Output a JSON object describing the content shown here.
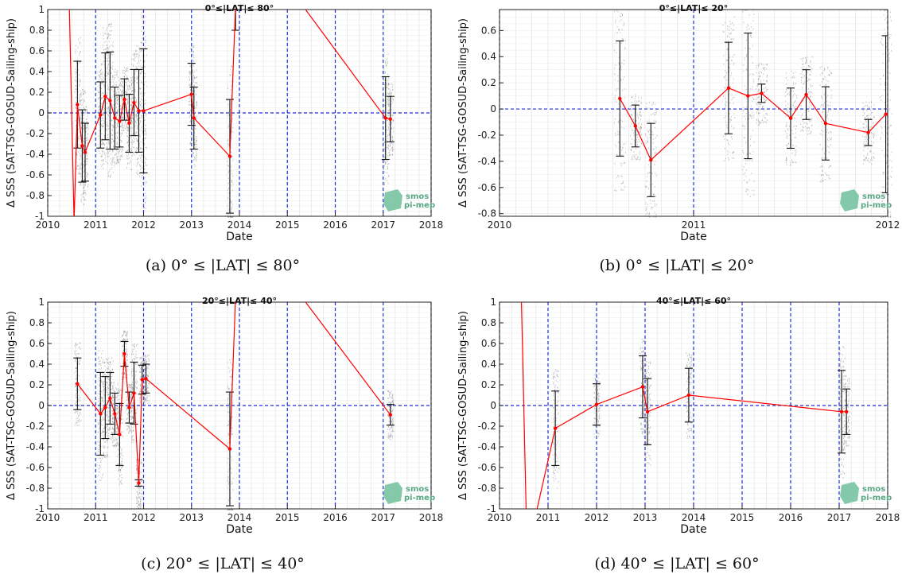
{
  "chart_data": [
    {
      "type": "line",
      "panel": "a",
      "title": "0°≤|LAT|≤ 80°",
      "caption": "(a) 0° ≤ |LAT| ≤ 80°",
      "xlabel": "Date",
      "ylabel": "Δ SSS (SAT-TSG-GOSUD-Sailing-ship)",
      "xlim": [
        2010,
        2018
      ],
      "ylim": [
        -1,
        1
      ],
      "xticks": [
        "2010",
        "2011",
        "2012",
        "2013",
        "2014",
        "2015",
        "2016",
        "2017",
        "2018"
      ],
      "yticks": [
        "-1",
        "-0.8",
        "-0.6",
        "-0.4",
        "-0.2",
        "0",
        "0.2",
        "0.4",
        "0.6",
        "0.8",
        "1"
      ],
      "logo_text": "smos pi-mep",
      "series": [
        {
          "color": "#ff0000",
          "x": [
            2010.45,
            2010.55,
            2010.62,
            2010.72,
            2010.78,
            2011.1,
            2011.2,
            2011.3,
            2011.4,
            2011.5,
            2011.6,
            2011.7,
            2011.8,
            2011.9,
            2012.0,
            2013.0,
            2013.05,
            2013.8,
            2013.92,
            2015.3,
            2017.05,
            2017.15
          ],
          "y": [
            1.05,
            -1.05,
            0.08,
            -0.32,
            -0.38,
            -0.02,
            0.16,
            0.12,
            -0.05,
            -0.08,
            0.13,
            -0.1,
            0.1,
            0.02,
            0.02,
            0.18,
            -0.05,
            -0.42,
            1.05,
            1.05,
            -0.05,
            -0.06
          ],
          "err": [
            0,
            0,
            0.42,
            0.35,
            0.28,
            0.32,
            0.42,
            0.47,
            0.3,
            0.25,
            0.2,
            0.28,
            0.32,
            0.4,
            0.6,
            0.3,
            0.3,
            0.55,
            0.25,
            0,
            0.4,
            0.22
          ]
        }
      ]
    },
    {
      "type": "line",
      "panel": "b",
      "title": "0°≤|LAT|≤ 20°",
      "caption": "(b) 0° ≤ |LAT| ≤ 20°",
      "xlabel": "Date",
      "ylabel": "Δ SSS (SAT-TSG-GOSUD-Sailing-ship)",
      "xlim": [
        2010,
        2012
      ],
      "ylim": [
        -0.82,
        0.76
      ],
      "xticks": [
        "2010",
        "2011",
        "2012"
      ],
      "yticks": [
        "-0.8",
        "-0.6",
        "-0.4",
        "-0.2",
        "0",
        "0.2",
        "0.4",
        "0.6"
      ],
      "logo_text": "smos pi-mep",
      "series": [
        {
          "color": "#ff0000",
          "x": [
            2010.62,
            2010.7,
            2010.78,
            2011.18,
            2011.28,
            2011.35,
            2011.5,
            2011.58,
            2011.68,
            2011.9,
            2011.99
          ],
          "y": [
            0.08,
            -0.13,
            -0.39,
            0.16,
            0.1,
            0.12,
            -0.07,
            0.11,
            -0.11,
            -0.18,
            -0.04
          ],
          "err": [
            0.44,
            0.16,
            0.28,
            0.35,
            0.48,
            0.07,
            0.23,
            0.19,
            0.28,
            0.1,
            0.6
          ]
        }
      ]
    },
    {
      "type": "line",
      "panel": "c",
      "title": "20°≤|LAT|≤ 40°",
      "caption": "(c) 20° ≤ |LAT| ≤ 40°",
      "xlabel": "Date",
      "ylabel": "Δ SSS (SAT-TSG-GOSUD-Sailing-ship)",
      "xlim": [
        2010,
        2018
      ],
      "ylim": [
        -1,
        1
      ],
      "xticks": [
        "2010",
        "2011",
        "2012",
        "2013",
        "2014",
        "2015",
        "2016",
        "2017",
        "2018"
      ],
      "yticks": [
        "-1",
        "-0.8",
        "-0.6",
        "-0.4",
        "-0.2",
        "0",
        "0.2",
        "0.4",
        "0.6",
        "0.8",
        "1"
      ],
      "logo_text": "smos pi-mep",
      "series": [
        {
          "color": "#ff0000",
          "x": [
            2010.62,
            2011.1,
            2011.2,
            2011.3,
            2011.4,
            2011.5,
            2011.6,
            2011.7,
            2011.8,
            2011.9,
            2011.97,
            2012.05,
            2013.8,
            2013.92,
            2015.3,
            2017.15
          ],
          "y": [
            0.21,
            -0.08,
            -0.02,
            0.07,
            -0.08,
            -0.28,
            0.5,
            -0.02,
            0.12,
            -0.75,
            0.25,
            0.26,
            -0.42,
            1.05,
            1.05,
            -0.09
          ],
          "err": [
            0.25,
            0.4,
            0.3,
            0.25,
            0.2,
            0.3,
            0.12,
            0.15,
            0.3,
            0.03,
            0.14,
            0.14,
            0.55,
            0.05,
            0,
            0.1
          ]
        }
      ]
    },
    {
      "type": "line",
      "panel": "d",
      "title": "40°≤|LAT|≤ 60°",
      "caption": "(d) 40° ≤ |LAT| ≤ 60°",
      "xlabel": "Date",
      "ylabel": "Δ SSS (SAT-TSG-GOSUD-Sailing-ship)",
      "xlim": [
        2010,
        2018
      ],
      "ylim": [
        -1,
        1
      ],
      "xticks": [
        "2010",
        "2011",
        "2012",
        "2013",
        "2014",
        "2015",
        "2016",
        "2017",
        "2018"
      ],
      "yticks": [
        "-1",
        "-0.8",
        "-0.6",
        "-0.4",
        "-0.2",
        "0",
        "0.2",
        "0.4",
        "0.6",
        "0.8",
        "1"
      ],
      "logo_text": "smos pi-mep",
      "series": [
        {
          "color": "#ff0000",
          "x": [
            2010.45,
            2010.55,
            2010.75,
            2011.15,
            2012.0,
            2012.95,
            2013.05,
            2013.9,
            2017.05,
            2017.15
          ],
          "y": [
            1.05,
            -1.05,
            -1.05,
            -0.22,
            0.01,
            0.18,
            -0.06,
            0.1,
            -0.06,
            -0.06
          ],
          "err": [
            0,
            0,
            0,
            0.36,
            0.2,
            0.3,
            0.32,
            0.26,
            0.4,
            0.22
          ]
        }
      ]
    }
  ]
}
